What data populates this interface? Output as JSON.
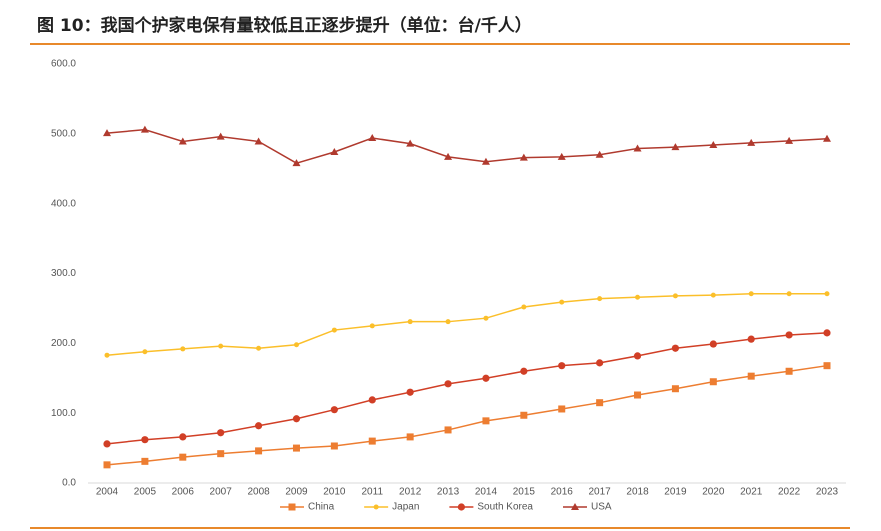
{
  "chart_data": {
    "type": "line",
    "title": "图 10：我国个护家电保有量较低且正逐步提升（单位：台/千人）",
    "categories": [
      "2004",
      "2005",
      "2006",
      "2007",
      "2008",
      "2009",
      "2010",
      "2011",
      "2012",
      "2013",
      "2014",
      "2015",
      "2016",
      "2017",
      "2018",
      "2019",
      "2020",
      "2021",
      "2022",
      "2023"
    ],
    "series": [
      {
        "name": "China",
        "color": "#ed7d31",
        "marker": "square",
        "values": [
          26,
          31,
          37,
          42,
          46,
          50,
          53,
          60,
          66,
          76,
          89,
          97,
          106,
          115,
          126,
          135,
          145,
          153,
          160,
          168
        ]
      },
      {
        "name": "Japan",
        "color": "#fbbf2a",
        "marker": "diamond",
        "values": [
          183,
          188,
          192,
          196,
          193,
          198,
          219,
          225,
          231,
          231,
          236,
          252,
          259,
          264,
          266,
          268,
          269,
          271,
          271,
          271
        ]
      },
      {
        "name": "South Korea",
        "color": "#d13f26",
        "marker": "circle",
        "values": [
          56,
          62,
          66,
          72,
          82,
          92,
          105,
          119,
          130,
          142,
          150,
          160,
          168,
          172,
          182,
          193,
          199,
          206,
          212,
          215
        ]
      },
      {
        "name": "USA",
        "color": "#b03a2e",
        "marker": "triangle",
        "values": [
          501,
          506,
          489,
          496,
          489,
          458,
          474,
          494,
          486,
          467,
          460,
          466,
          467,
          470,
          479,
          481,
          484,
          487,
          490,
          493
        ]
      }
    ],
    "ylim": [
      0,
      600
    ],
    "yticks": [
      {
        "value": 0,
        "label": "0.0"
      },
      {
        "value": 100,
        "label": "100.0"
      },
      {
        "value": 200,
        "label": "200.0"
      },
      {
        "value": 300,
        "label": "300.0"
      },
      {
        "value": 400,
        "label": "400.0"
      },
      {
        "value": 500,
        "label": "500.0"
      },
      {
        "value": 600,
        "label": "600.0"
      }
    ],
    "grid": false,
    "legend": "bottom"
  }
}
